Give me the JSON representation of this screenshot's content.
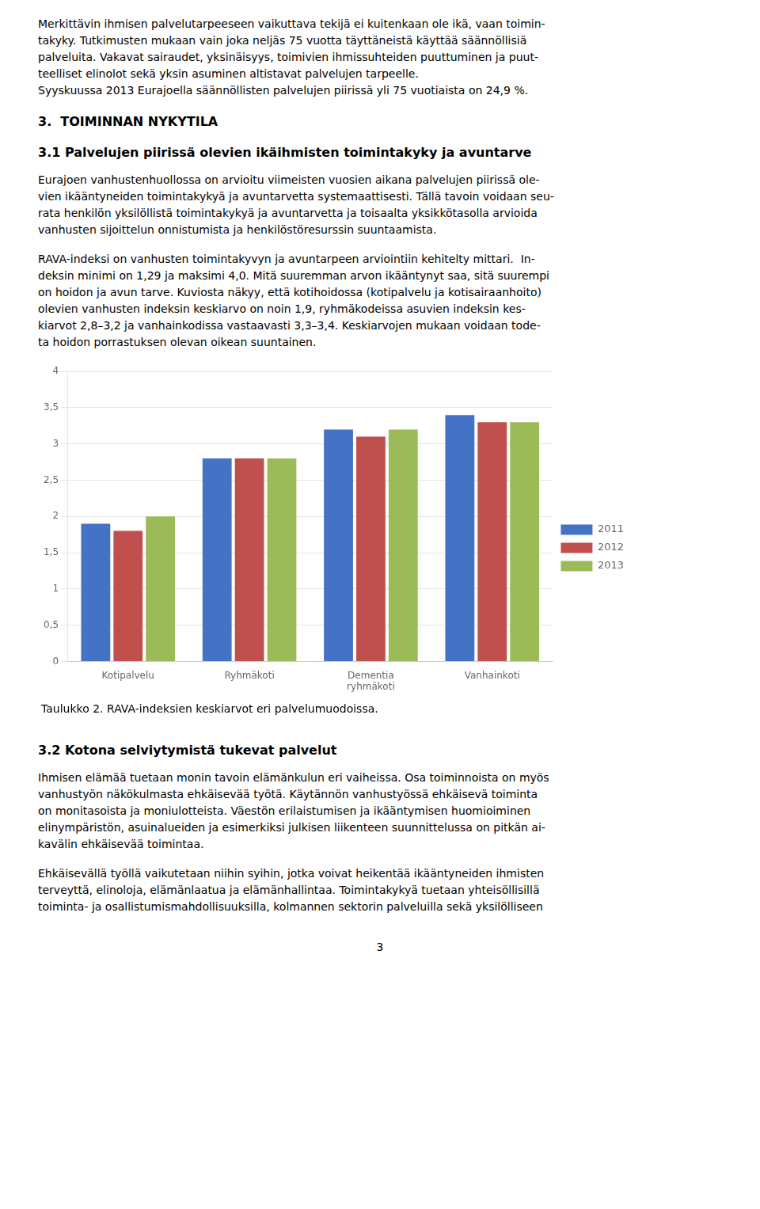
{
  "chart_data": {
    "type": "bar",
    "title": "Taulukko 2. RAVA-indeksien keskiarvot eri palvelumuodoissa.",
    "categories": [
      "Kotipalvelu",
      "Ryhmäkoti",
      "Dementia\nryhmäkoti",
      "Vanhainkoti"
    ],
    "series": [
      {
        "name": "2011",
        "color": "#4472C4",
        "values": [
          1.9,
          2.8,
          3.2,
          3.4
        ]
      },
      {
        "name": "2012",
        "color": "#C0504D",
        "values": [
          1.8,
          2.8,
          3.1,
          3.3
        ]
      },
      {
        "name": "2013",
        "color": "#9BBB59",
        "values": [
          2.0,
          2.8,
          3.2,
          3.3
        ]
      }
    ],
    "ylim": [
      0,
      4
    ],
    "yticks": [
      0,
      {
        "value": 0.5,
        "label": "0,5"
      },
      1,
      {
        "value": 1.5,
        "label": "1,5"
      },
      2,
      {
        "value": 2.5,
        "label": "2,5"
      },
      3,
      {
        "value": 3.5,
        "label": "3,5"
      },
      4
    ],
    "grid": true,
    "legend": "right",
    "annotations": [
      "Merkittävin ihmisen palvelutarpeeseen vaikuttava tekijä ei kuitenkaan ole ikä, vaan toimin-\ntakyky. Tutkimusten mukaan vain joka neljäs 75 vuotta täyttäneistä käyttää säännöllisiä\npalveluita. Vakavat sairaudet, yksinäisyys, toimivien ihmissuhteiden puuttuminen ja puut-\nteelliset elinolot sekä yksin asuminen altistavat palvelujen tarpeelle.\nSyyskuussa 2013 Eurajoella säännöllisten palvelujen piirissä yli 75 vuotiaista on 24,9 %.",
      "3.  TOIMINNAN NYKYTILA",
      "3.1 Palvelujen piirissä olevien ikäihmisten toimintakyky ja avuntarve",
      "Eurajoen vanhustenhuollossa on arvioitu viimeisten vuosien aikana palvelujen piirissä ole-\nvien ikääntyneiden toimintakykyä ja avuntarvetta systemaattisesti. Tällä tavoin voidaan seu-\nrata henkilön yksilöllistä toimintakykyä ja avuntarvetta ja toisaalta yksikkötasolla arvioida\nvanhusten sijoittelun onnistumista ja henkilöstöresurssin suuntaamista.",
      "RAVA-indeksi on vanhusten toimintakyvyn ja avuntarpeen arviointiin kehitelty mittari.  In-\ndeksin minimi on 1,29 ja maksimi 4,0. Mitä suuremman arvon ikääntynyt saa, sitä suurempi\non hoidon ja avun tarve. Kuviosta näkyy, että kotihoidossa (kotipalvelu ja kotisairaanhoito)\nolevien vanhusten indeksin keskiarvo on noin 1,9, ryhmäkodeissa asuvien indeksin kes-\nkiarvot 2,8–3,2 ja vanhainkodissa vastaavasti 3,3–3,4. Keskiarvojen mukaan voidaan tode-\nta hoidon porrastuksen olevan oikean suuntainen.",
      "3.2 Kotona selviytymistä tukevat palvelut",
      "Ihmisen elämää tuetaan monin tavoin elämänkulun eri vaiheissa. Osa toiminnoista on myös\nvanhustyön näkökulmasta ehkäisevää työtä. Käytännön vanhustyössä ehkäisevä toiminta\non monitasoista ja moniulotteista. Väestön erilaistumisen ja ikääntymisen huomioiminen\nelinympäristön, asuinalueiden ja esimerkiksi julkisen liikenteen suunnittelussa on pitkän ai-\nkavälin ehkäisevää toimintaa.",
      "Ehkäisevällä työllä vaikutetaan niihin syihin, jotka voivat heikentää ikääntyneiden ihmisten\nterveyttä, elinoloja, elämänlaatua ja elämänhallintaa. Toimintakykyä tuetaan yhteisöllisillä\ntoiminta- ja osallistumismahdollisuuksilla, kolmannen sektorin palveluilla sekä yksilölliseen",
      "3"
    ]
  }
}
